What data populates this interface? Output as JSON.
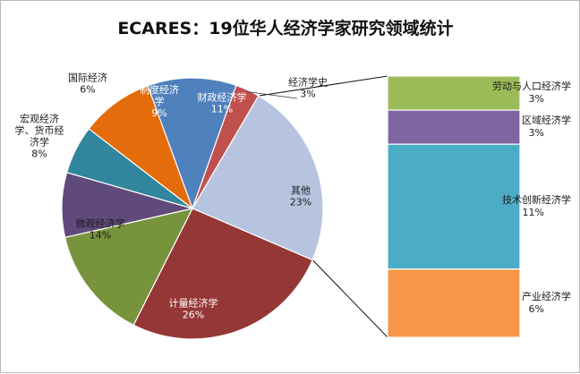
{
  "chart_data": {
    "type": "pie",
    "subtype": "bar-of-pie",
    "title": "ECARES：19位华人经济学家研究领域统计",
    "pie": [
      {
        "name": "财政经济学",
        "pct": "11%",
        "value": 11,
        "color": "#4f81bd"
      },
      {
        "name": "经济学史",
        "pct": "3%",
        "value": 3,
        "color": "#c0504d"
      },
      {
        "name": "其他",
        "pct": "23%",
        "value": 23,
        "color": "#b6c4df"
      },
      {
        "name": "计量经济学",
        "pct": "26%",
        "value": 26,
        "color": "#953735"
      },
      {
        "name": "微观经济学",
        "pct": "14%",
        "value": 14,
        "color": "#77933c"
      },
      {
        "name": "宏观经济学、货币经济学",
        "pct": "8%",
        "value": 8,
        "color": "#604a7b"
      },
      {
        "name": "国际经济",
        "pct": "6%",
        "value": 6,
        "color": "#31859c"
      },
      {
        "name": "制度经济学",
        "pct": "9%",
        "value": 9,
        "color": "#e46c0a"
      }
    ],
    "bar": [
      {
        "name": "劳动与人口经济学",
        "pct": "3%",
        "value": 3,
        "color": "#9bbb59"
      },
      {
        "name": "区域经济学",
        "pct": "3%",
        "value": 3,
        "color": "#8064a2"
      },
      {
        "name": "技术创新经济学",
        "pct": "11%",
        "value": 11,
        "color": "#4bacc6"
      },
      {
        "name": "产业经济学",
        "pct": "6%",
        "value": 6,
        "color": "#f79646"
      }
    ]
  }
}
